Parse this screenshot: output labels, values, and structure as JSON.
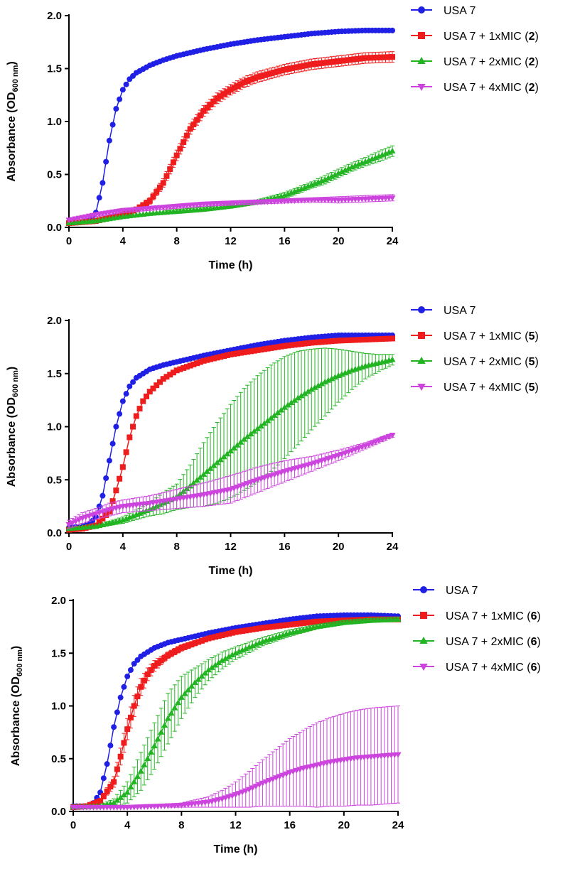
{
  "chart_data": [
    {
      "type": "line",
      "panel": "top",
      "xlabel": "Time (h)",
      "ylabel": {
        "prefix": "Absorbance (OD",
        "sub": "600 nm",
        "suffix": ")"
      },
      "xlim": [
        0,
        24
      ],
      "ylim": [
        0,
        2.0
      ],
      "x_ticks": [
        0,
        4,
        8,
        12,
        16,
        20,
        24
      ],
      "y_ticks": [
        0.0,
        0.5,
        1.0,
        1.5,
        2.0
      ],
      "y_tick_labels": [
        "0.0",
        "0.5",
        "1.0",
        "1.5",
        "2.0"
      ],
      "legend_position": "right",
      "series": [
        {
          "name": "USA 7",
          "legend_prefix": "USA 7",
          "legend_bold": "",
          "legend_suffix": "",
          "color": "#1f1fe6",
          "marker": "circle",
          "x": [
            0,
            1,
            1.5,
            2,
            2.5,
            3,
            3.5,
            4,
            4.5,
            5,
            6,
            7,
            8,
            10,
            12,
            14,
            16,
            18,
            20,
            22,
            24
          ],
          "y": [
            0.05,
            0.05,
            0.07,
            0.14,
            0.42,
            0.82,
            1.12,
            1.3,
            1.4,
            1.46,
            1.53,
            1.58,
            1.62,
            1.68,
            1.73,
            1.77,
            1.8,
            1.83,
            1.85,
            1.86,
            1.86
          ],
          "err": [
            0.01,
            0.01,
            0.01,
            0.01,
            0.01,
            0.01,
            0.01,
            0.01,
            0.01,
            0.01,
            0.01,
            0.01,
            0.01,
            0.01,
            0.01,
            0.01,
            0.01,
            0.01,
            0.01,
            0.01,
            0.01
          ]
        },
        {
          "name": "USA 7 + 1xMIC (2)",
          "legend_prefix": "USA 7 + 1xMIC (",
          "legend_bold": "2",
          "legend_suffix": ")",
          "color": "#ee1c1c",
          "marker": "square",
          "x": [
            0,
            2,
            4,
            5,
            6,
            7,
            8,
            9,
            10,
            11,
            12,
            13,
            14,
            16,
            18,
            20,
            22,
            24
          ],
          "y": [
            0.04,
            0.06,
            0.12,
            0.17,
            0.25,
            0.42,
            0.68,
            0.93,
            1.1,
            1.22,
            1.3,
            1.37,
            1.42,
            1.49,
            1.54,
            1.57,
            1.6,
            1.61
          ],
          "err": [
            0.01,
            0.01,
            0.02,
            0.02,
            0.03,
            0.04,
            0.05,
            0.05,
            0.05,
            0.05,
            0.05,
            0.05,
            0.05,
            0.05,
            0.05,
            0.05,
            0.05,
            0.05
          ]
        },
        {
          "name": "USA 7 + 2xMIC (2)",
          "legend_prefix": "USA 7 + 2xMIC (",
          "legend_bold": "2",
          "legend_suffix": ")",
          "color": "#22b422",
          "marker": "triangle-up",
          "x": [
            0,
            2,
            4,
            6,
            8,
            10,
            12,
            14,
            16,
            17,
            18,
            19,
            20,
            21,
            22,
            23,
            24
          ],
          "y": [
            0.04,
            0.06,
            0.1,
            0.13,
            0.15,
            0.17,
            0.2,
            0.24,
            0.3,
            0.35,
            0.4,
            0.45,
            0.51,
            0.57,
            0.62,
            0.67,
            0.72
          ],
          "err": [
            0.01,
            0.01,
            0.01,
            0.01,
            0.02,
            0.02,
            0.02,
            0.02,
            0.03,
            0.03,
            0.03,
            0.04,
            0.04,
            0.04,
            0.04,
            0.05,
            0.05
          ]
        },
        {
          "name": "USA 7 + 4xMIC (2)",
          "legend_prefix": "USA 7 + 4xMIC (",
          "legend_bold": "2",
          "legend_suffix": ")",
          "color": "#cc44dd",
          "marker": "triangle-down",
          "x": [
            0,
            2,
            4,
            6,
            8,
            10,
            12,
            14,
            16,
            18,
            20,
            22,
            24
          ],
          "y": [
            0.07,
            0.12,
            0.16,
            0.18,
            0.2,
            0.22,
            0.23,
            0.24,
            0.25,
            0.26,
            0.26,
            0.27,
            0.28
          ],
          "err": [
            0.01,
            0.02,
            0.02,
            0.02,
            0.02,
            0.02,
            0.02,
            0.02,
            0.02,
            0.02,
            0.03,
            0.03,
            0.03
          ]
        }
      ]
    },
    {
      "type": "line",
      "panel": "middle",
      "xlabel": "Time (h)",
      "ylabel": {
        "prefix": "Absorbance (OD",
        "sub": "600 nm",
        "suffix": ")"
      },
      "xlim": [
        0,
        24
      ],
      "ylim": [
        0,
        2.0
      ],
      "x_ticks": [
        0,
        4,
        8,
        12,
        16,
        20,
        24
      ],
      "y_ticks": [
        0.0,
        0.5,
        1.0,
        1.5,
        2.0
      ],
      "y_tick_labels": [
        "0.0",
        "0.5",
        "1.0",
        "1.5",
        "2.0"
      ],
      "legend_position": "right",
      "series": [
        {
          "name": "USA 7",
          "legend_prefix": "USA 7",
          "legend_bold": "",
          "legend_suffix": "",
          "color": "#1f1fe6",
          "marker": "circle",
          "x": [
            0,
            1,
            1.5,
            2,
            2.5,
            3,
            3.5,
            4,
            4.5,
            5,
            6,
            7,
            8,
            10,
            12,
            14,
            16,
            18,
            20,
            22,
            24
          ],
          "y": [
            0.05,
            0.06,
            0.08,
            0.15,
            0.35,
            0.68,
            1.0,
            1.24,
            1.38,
            1.46,
            1.54,
            1.58,
            1.61,
            1.67,
            1.72,
            1.77,
            1.81,
            1.84,
            1.86,
            1.86,
            1.86
          ],
          "err": [
            0.01,
            0.01,
            0.01,
            0.01,
            0.01,
            0.01,
            0.01,
            0.01,
            0.01,
            0.01,
            0.01,
            0.01,
            0.01,
            0.01,
            0.01,
            0.01,
            0.01,
            0.01,
            0.01,
            0.01,
            0.01
          ]
        },
        {
          "name": "USA 7 + 1xMIC (5)",
          "legend_prefix": "USA 7 + 1xMIC (",
          "legend_bold": "5",
          "legend_suffix": ")",
          "color": "#ee1c1c",
          "marker": "square",
          "x": [
            0,
            1,
            2,
            3,
            3.5,
            4,
            4.5,
            5,
            5.5,
            6,
            7,
            8,
            10,
            12,
            14,
            16,
            18,
            20,
            22,
            24
          ],
          "y": [
            0.03,
            0.04,
            0.07,
            0.2,
            0.4,
            0.62,
            0.9,
            1.1,
            1.24,
            1.33,
            1.45,
            1.53,
            1.62,
            1.68,
            1.72,
            1.76,
            1.79,
            1.81,
            1.82,
            1.83
          ],
          "err": [
            0.01,
            0.01,
            0.01,
            0.02,
            0.02,
            0.02,
            0.02,
            0.02,
            0.02,
            0.02,
            0.02,
            0.02,
            0.02,
            0.02,
            0.02,
            0.02,
            0.02,
            0.02,
            0.02,
            0.02
          ]
        },
        {
          "name": "USA 7 + 2xMIC (5)",
          "legend_prefix": "USA 7 + 2xMIC (",
          "legend_bold": "5",
          "legend_suffix": ")",
          "color": "#22b422",
          "marker": "triangle-up",
          "x": [
            0,
            2,
            4,
            6,
            7,
            8,
            9,
            10,
            11,
            12,
            13,
            14,
            15,
            16,
            17,
            18,
            19,
            20,
            21,
            22,
            23,
            24
          ],
          "y": [
            0.04,
            0.06,
            0.12,
            0.22,
            0.28,
            0.34,
            0.44,
            0.55,
            0.66,
            0.77,
            0.88,
            0.98,
            1.08,
            1.18,
            1.27,
            1.35,
            1.42,
            1.48,
            1.53,
            1.57,
            1.6,
            1.63
          ],
          "err": [
            0.01,
            0.01,
            0.03,
            0.06,
            0.1,
            0.12,
            0.2,
            0.3,
            0.38,
            0.44,
            0.48,
            0.5,
            0.5,
            0.48,
            0.44,
            0.38,
            0.32,
            0.25,
            0.18,
            0.12,
            0.08,
            0.05
          ]
        },
        {
          "name": "USA 7 + 4xMIC (5)",
          "legend_prefix": "USA 7 + 4xMIC (",
          "legend_bold": "5",
          "legend_suffix": ")",
          "color": "#cc44dd",
          "marker": "triangle-down",
          "x": [
            0,
            1,
            2,
            3,
            4,
            6,
            8,
            10,
            12,
            14,
            16,
            18,
            20,
            22,
            24
          ],
          "y": [
            0.08,
            0.14,
            0.18,
            0.22,
            0.25,
            0.28,
            0.32,
            0.36,
            0.41,
            0.5,
            0.58,
            0.65,
            0.73,
            0.82,
            0.92
          ],
          "err": [
            0.04,
            0.05,
            0.05,
            0.06,
            0.06,
            0.07,
            0.09,
            0.11,
            0.13,
            0.12,
            0.1,
            0.07,
            0.05,
            0.03,
            0.02
          ]
        }
      ]
    },
    {
      "type": "line",
      "panel": "bottom",
      "xlabel": "Time (h)",
      "ylabel": {
        "prefix": "Absorbance (OD",
        "sub": "600 nm",
        "suffix": ")"
      },
      "xlim": [
        0,
        24
      ],
      "ylim": [
        0,
        2.0
      ],
      "x_ticks": [
        0,
        4,
        8,
        12,
        16,
        20,
        24
      ],
      "y_ticks": [
        0.0,
        0.5,
        1.0,
        1.5,
        2.0
      ],
      "y_tick_labels": [
        "0.0",
        "0.5",
        "1.0",
        "1.5",
        "2.0"
      ],
      "legend_position": "right",
      "series": [
        {
          "name": "USA 7",
          "legend_prefix": "USA 7",
          "legend_bold": "",
          "legend_suffix": "",
          "color": "#1f1fe6",
          "marker": "circle",
          "x": [
            0,
            1,
            1.5,
            2,
            2.5,
            3,
            3.5,
            4,
            4.5,
            5,
            6,
            7,
            8,
            10,
            12,
            14,
            16,
            18,
            20,
            22,
            24
          ],
          "y": [
            0.05,
            0.05,
            0.08,
            0.18,
            0.45,
            0.8,
            1.08,
            1.28,
            1.4,
            1.47,
            1.55,
            1.6,
            1.63,
            1.69,
            1.74,
            1.78,
            1.82,
            1.85,
            1.86,
            1.86,
            1.85
          ],
          "err": [
            0.01,
            0.01,
            0.01,
            0.01,
            0.01,
            0.01,
            0.01,
            0.01,
            0.01,
            0.01,
            0.01,
            0.01,
            0.01,
            0.01,
            0.01,
            0.01,
            0.01,
            0.01,
            0.01,
            0.01,
            0.01
          ]
        },
        {
          "name": "USA 7 + 1xMIC (6)",
          "legend_prefix": "USA 7 + 1xMIC (",
          "legend_bold": "6",
          "legend_suffix": ")",
          "color": "#ee1c1c",
          "marker": "square",
          "x": [
            0,
            1,
            2,
            3,
            3.5,
            4,
            4.5,
            5,
            5.5,
            6,
            7,
            8,
            10,
            12,
            14,
            16,
            18,
            20,
            22,
            24
          ],
          "y": [
            0.04,
            0.05,
            0.1,
            0.28,
            0.52,
            0.78,
            1.0,
            1.18,
            1.3,
            1.38,
            1.48,
            1.55,
            1.64,
            1.7,
            1.74,
            1.77,
            1.8,
            1.81,
            1.82,
            1.82
          ],
          "err": [
            0.01,
            0.01,
            0.02,
            0.05,
            0.08,
            0.1,
            0.1,
            0.08,
            0.06,
            0.05,
            0.03,
            0.03,
            0.02,
            0.02,
            0.02,
            0.02,
            0.02,
            0.02,
            0.02,
            0.02
          ]
        },
        {
          "name": "USA 7 + 2xMIC (6)",
          "legend_prefix": "USA 7 + 2xMIC (",
          "legend_bold": "6",
          "legend_suffix": ")",
          "color": "#22b422",
          "marker": "triangle-up",
          "x": [
            0,
            2,
            3,
            4,
            5,
            6,
            7,
            8,
            9,
            10,
            11,
            12,
            14,
            16,
            18,
            20,
            22,
            24
          ],
          "y": [
            0.04,
            0.05,
            0.08,
            0.18,
            0.38,
            0.62,
            0.88,
            1.08,
            1.22,
            1.34,
            1.43,
            1.5,
            1.61,
            1.69,
            1.75,
            1.79,
            1.81,
            1.82
          ],
          "err": [
            0.01,
            0.01,
            0.04,
            0.1,
            0.18,
            0.22,
            0.24,
            0.2,
            0.14,
            0.1,
            0.08,
            0.06,
            0.04,
            0.03,
            0.02,
            0.02,
            0.02,
            0.02
          ]
        },
        {
          "name": "USA 7 + 4xMIC (6)",
          "legend_prefix": "USA 7 + 4xMIC (",
          "legend_bold": "6",
          "legend_suffix": ")",
          "color": "#cc44dd",
          "marker": "triangle-down",
          "x": [
            0,
            2,
            4,
            6,
            8,
            10,
            11,
            12,
            13,
            14,
            15,
            16,
            17,
            18,
            19,
            20,
            21,
            22,
            23,
            24
          ],
          "y": [
            0.04,
            0.04,
            0.04,
            0.05,
            0.06,
            0.09,
            0.12,
            0.16,
            0.21,
            0.27,
            0.32,
            0.37,
            0.41,
            0.44,
            0.47,
            0.49,
            0.51,
            0.52,
            0.53,
            0.54
          ],
          "err": [
            0.01,
            0.01,
            0.01,
            0.01,
            0.02,
            0.05,
            0.08,
            0.12,
            0.17,
            0.22,
            0.27,
            0.32,
            0.36,
            0.4,
            0.42,
            0.44,
            0.45,
            0.46,
            0.46,
            0.46
          ]
        }
      ]
    }
  ]
}
